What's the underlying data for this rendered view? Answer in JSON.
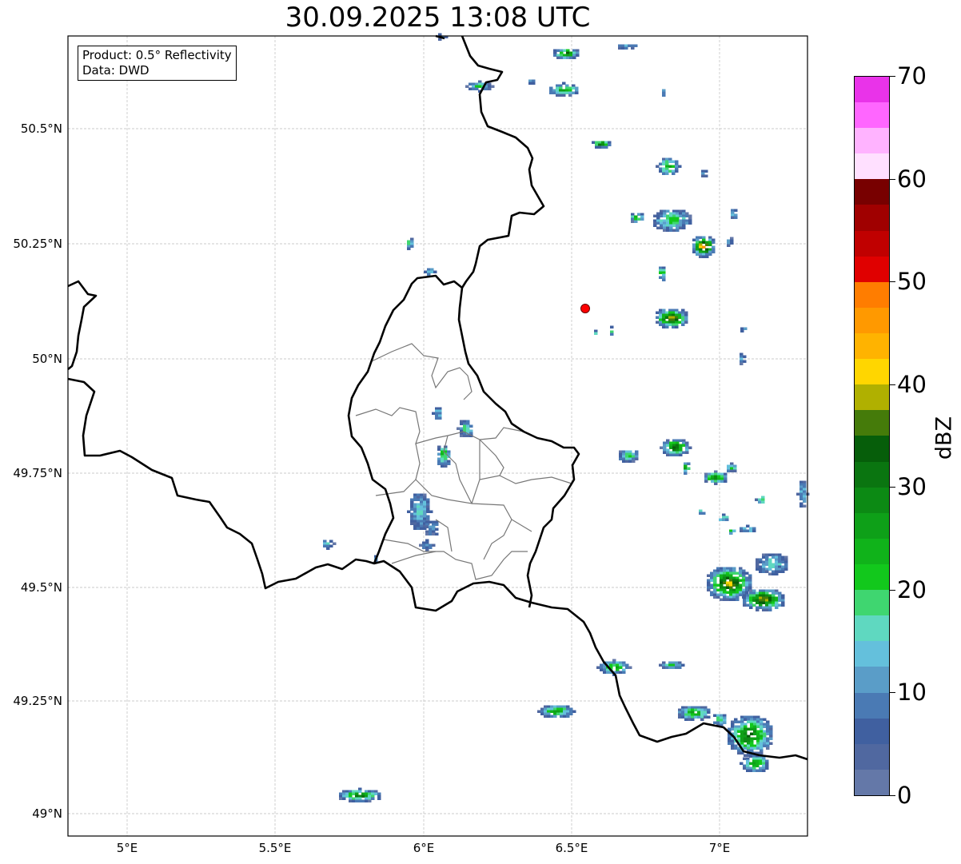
{
  "title": "30.09.2025 13:08 UTC",
  "info_box": {
    "line1": "Product: 0.5° Reflectivity",
    "line2": "Data: DWD"
  },
  "x_ticks": [
    "5°E",
    "5.5°E",
    "6°E",
    "6.5°E",
    "7°E"
  ],
  "y_ticks": [
    "50.5°N",
    "50.25°N",
    "50°N",
    "49.75°N",
    "49.5°N",
    "49.25°N",
    "49°N"
  ],
  "colorbar": {
    "label": "dBZ",
    "ticks": [
      "0",
      "10",
      "20",
      "30",
      "40",
      "50",
      "60",
      "70"
    ],
    "range": [
      0,
      70
    ],
    "step": 2.5,
    "colors": [
      "#6478a8",
      "#5068a0",
      "#4060a0",
      "#4a7ab4",
      "#5a9dc8",
      "#64c0dc",
      "#5fd8c0",
      "#3fd670",
      "#12c81c",
      "#10b31a",
      "#0ea018",
      "#0c8a14",
      "#0a7510",
      "#065e0a",
      "#457b0a",
      "#b0b000",
      "#ffd600",
      "#ffb300",
      "#ff9900",
      "#ff7d00",
      "#e00000",
      "#c00000",
      "#a00000",
      "#780000",
      "#ffe0ff",
      "#ffb3ff",
      "#ff66ff",
      "#e933e9"
    ]
  },
  "map_extent": {
    "lon": [
      4.8,
      7.3
    ],
    "lat": [
      48.95,
      50.7
    ]
  },
  "marker": {
    "color": "#ff0000",
    "lon": 6.55,
    "lat": 50.11
  }
}
